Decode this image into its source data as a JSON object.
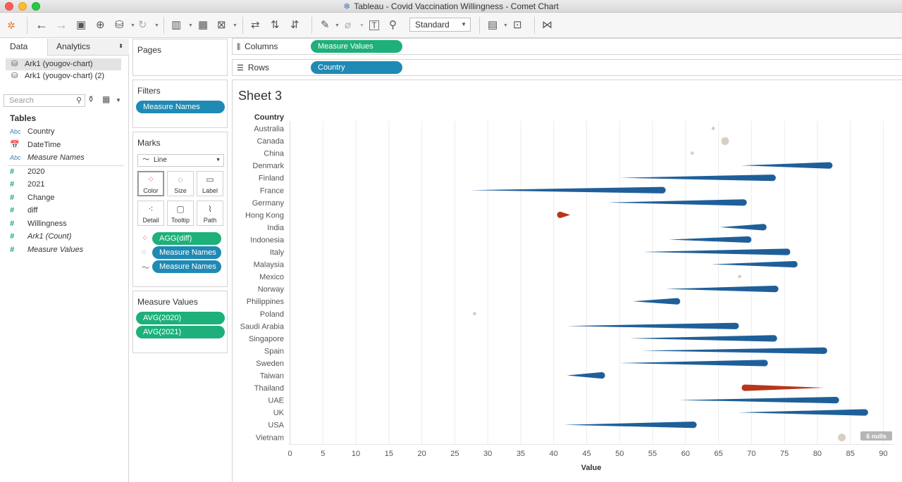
{
  "window": {
    "title": "Tableau - Covid Vaccination Willingness - Comet Chart"
  },
  "toolbar": {
    "view_mode": "Standard"
  },
  "left_pane": {
    "tabs": [
      "Data",
      "Analytics"
    ],
    "data_sources": [
      "Ark1 (yougov-chart)",
      "Ark1 (yougov-chart) (2)"
    ],
    "search_placeholder": "Search",
    "tables_header": "Tables",
    "dimensions": [
      {
        "label": "Country",
        "italic": false
      },
      {
        "label": "DateTime",
        "italic": false
      },
      {
        "label": "Measure Names",
        "italic": true
      }
    ],
    "measures": [
      {
        "label": "2020",
        "italic": false
      },
      {
        "label": "2021",
        "italic": false
      },
      {
        "label": "Change",
        "italic": false
      },
      {
        "label": "diff",
        "italic": false
      },
      {
        "label": "Willingness",
        "italic": false
      },
      {
        "label": "Ark1 (Count)",
        "italic": true
      },
      {
        "label": "Measure Values",
        "italic": true
      }
    ],
    "dim_icon": "Abc"
  },
  "cards": {
    "pages": "Pages",
    "filters": "Filters",
    "filter_pill": "Measure Names",
    "marks": "Marks",
    "mark_type": "Line",
    "mark_buttons": [
      "Color",
      "Size",
      "Label",
      "Detail",
      "Tooltip",
      "Path"
    ],
    "mark_pills": [
      "AGG(diff)",
      "Measure Names",
      "Measure Names"
    ],
    "measure_values": "Measure Values",
    "measure_value_pills": [
      "AVG(2020)",
      "AVG(2021)"
    ]
  },
  "shelves": {
    "columns_label": "Columns",
    "columns_pill": "Measure Values",
    "rows_label": "Rows",
    "rows_pill": "Country"
  },
  "sheet_title": "Sheet 3",
  "colors": {
    "blue": "#1f5f99",
    "red": "#b8361a",
    "null_dot": "#d8cfc2",
    "green_pill": "#1db07a",
    "blue_pill": "#1f8ab4"
  },
  "chart_data": {
    "type": "comet",
    "y_header": "Country",
    "xlabel": "Value",
    "xlim": [
      0,
      90
    ],
    "x_ticks": [
      0,
      5,
      10,
      15,
      20,
      25,
      30,
      35,
      40,
      45,
      50,
      55,
      60,
      65,
      70,
      75,
      80,
      85,
      90
    ],
    "null_note": "6 nulls",
    "rows": [
      {
        "country": "Australia",
        "v2020": null,
        "v2021": 64.2,
        "dir": "none"
      },
      {
        "country": "Canada",
        "v2020": null,
        "v2021": 66.0,
        "dir": "none"
      },
      {
        "country": "China",
        "v2020": null,
        "v2021": 61.0,
        "dir": "none"
      },
      {
        "country": "Denmark",
        "v2020": 68.5,
        "v2021": 81.8,
        "dir": "up"
      },
      {
        "country": "Finland",
        "v2020": 50.0,
        "v2021": 73.2,
        "dir": "up"
      },
      {
        "country": "France",
        "v2020": 27.3,
        "v2021": 56.5,
        "dir": "up"
      },
      {
        "country": "Germany",
        "v2020": 48.2,
        "v2021": 68.8,
        "dir": "up"
      },
      {
        "country": "Hong Kong",
        "v2020": 42.5,
        "v2021": 41.0,
        "dir": "down"
      },
      {
        "country": "India",
        "v2020": 65.2,
        "v2021": 71.8,
        "dir": "up"
      },
      {
        "country": "Indonesia",
        "v2020": 57.5,
        "v2021": 69.5,
        "dir": "up"
      },
      {
        "country": "Italy",
        "v2020": 53.5,
        "v2021": 75.4,
        "dir": "up"
      },
      {
        "country": "Malaysia",
        "v2020": 64.0,
        "v2021": 76.5,
        "dir": "up"
      },
      {
        "country": "Mexico",
        "v2020": null,
        "v2021": 68.2,
        "dir": "none"
      },
      {
        "country": "Norway",
        "v2020": 57.0,
        "v2021": 73.6,
        "dir": "up"
      },
      {
        "country": "Philippines",
        "v2020": 52.0,
        "v2021": 58.7,
        "dir": "up"
      },
      {
        "country": "Poland",
        "v2020": null,
        "v2021": 28.0,
        "dir": "none"
      },
      {
        "country": "Saudi Arabia",
        "v2020": 42.0,
        "v2021": 67.6,
        "dir": "up"
      },
      {
        "country": "Singapore",
        "v2020": 51.5,
        "v2021": 73.4,
        "dir": "up"
      },
      {
        "country": "Spain",
        "v2020": 53.3,
        "v2021": 81.0,
        "dir": "up"
      },
      {
        "country": "Sweden",
        "v2020": 50.0,
        "v2021": 72.0,
        "dir": "up"
      },
      {
        "country": "Taiwan",
        "v2020": 42.0,
        "v2021": 47.3,
        "dir": "up"
      },
      {
        "country": "Thailand",
        "v2020": 81.0,
        "v2021": 69.0,
        "dir": "down"
      },
      {
        "country": "UAE",
        "v2020": 59.0,
        "v2021": 82.8,
        "dir": "up"
      },
      {
        "country": "UK",
        "v2020": 68.0,
        "v2021": 87.2,
        "dir": "up"
      },
      {
        "country": "USA",
        "v2020": 41.5,
        "v2021": 61.2,
        "dir": "up"
      },
      {
        "country": "Vietnam",
        "v2020": null,
        "v2021": 83.7,
        "dir": "none"
      }
    ]
  }
}
